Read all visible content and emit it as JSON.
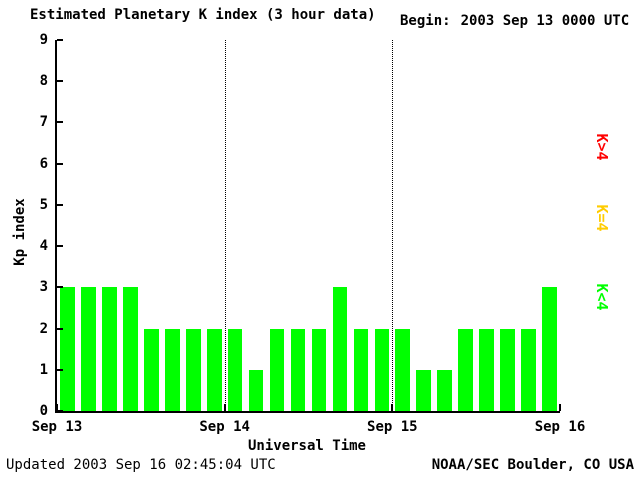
{
  "header": {
    "title": "Estimated Planetary K index (3 hour data)",
    "begin_label": "Begin:",
    "begin_value": "2003 Sep 13 0000 UTC"
  },
  "footer": {
    "updated": "Updated 2003 Sep 16 02:45:04 UTC",
    "org": "NOAA/SEC Boulder, CO USA"
  },
  "chart_data": {
    "type": "bar",
    "title": "Estimated Planetary K index (3 hour data)",
    "xlabel": "Universal Time",
    "ylabel": "Kp index",
    "ylim": [
      0,
      9
    ],
    "y_ticks": [
      0,
      1,
      2,
      3,
      4,
      5,
      6,
      7,
      8,
      9
    ],
    "x_tick_labels": [
      "Sep 13",
      "Sep 14",
      "Sep 15",
      "Sep 16"
    ],
    "bars_per_day": 8,
    "interval_hours": 3,
    "values": [
      3,
      3,
      3,
      3,
      2,
      2,
      2,
      2,
      2,
      1,
      2,
      2,
      2,
      3,
      2,
      2,
      2,
      1,
      1,
      2,
      2,
      2,
      2,
      3
    ],
    "bar_color": "#00ff00",
    "grid": "dotted vertical lines at day boundaries",
    "legend_position": "right",
    "legend": [
      {
        "label": "K>4",
        "color": "#ff0000"
      },
      {
        "label": "K=4",
        "color": "#ffcc00"
      },
      {
        "label": "K<4",
        "color": "#00ff00"
      }
    ]
  }
}
